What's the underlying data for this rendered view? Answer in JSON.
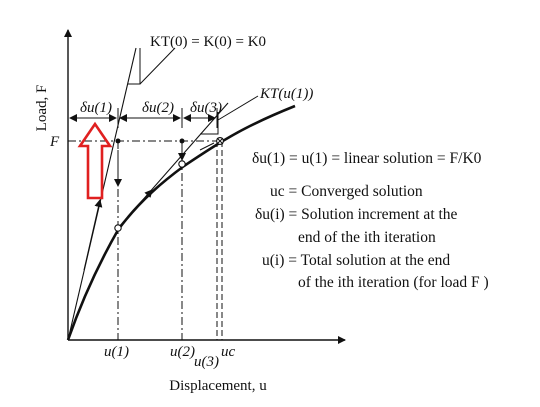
{
  "diagram": {
    "axis_y_label": "Load, F",
    "axis_x_label": "Displacement, u",
    "f_label": "F",
    "kt0_label": "KT(0) = K(0) = K0",
    "ktu1_label": "KT(u(1))",
    "du1_label": "δu(1)",
    "du2_label": "δu(2)",
    "du3_label": "δu(3)",
    "u1_label": "u(1)",
    "u2_label": "u(2)",
    "u3_label": "u(3)",
    "uc_label": "uc",
    "legend": {
      "line1": "δu(1) = u(1) = linear solution = F/K0",
      "line2": "uc = Converged solution",
      "line3a": "δu(i) = Solution increment at the",
      "line3b": "end of the ith iteration",
      "line4a": "u(i) = Total solution at the end",
      "line4b": "of the ith iteration (for load F )"
    },
    "colors": {
      "ink": "#111111",
      "highlight_arrow": "#e02020"
    }
  }
}
